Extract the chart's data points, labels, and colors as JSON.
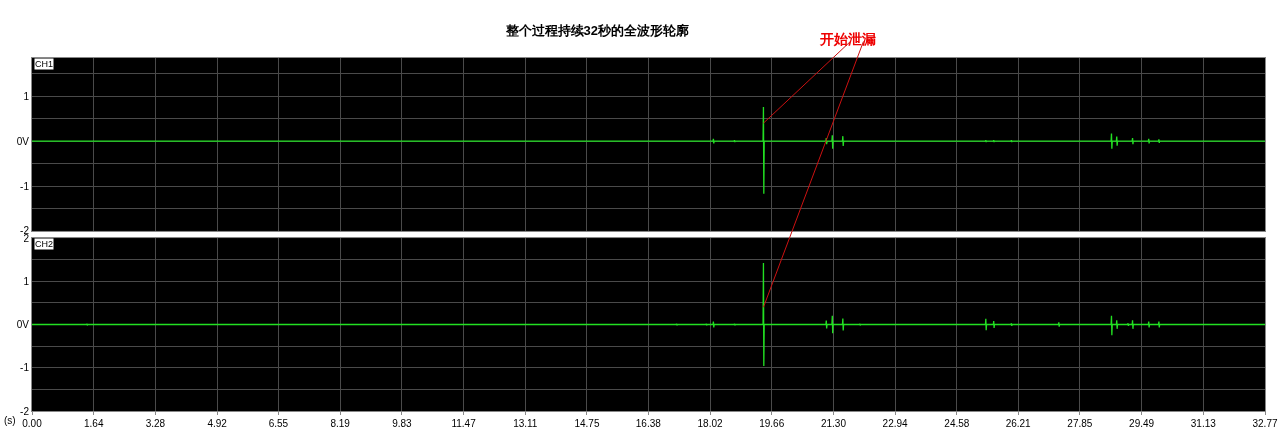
{
  "chart_data": [
    {
      "type": "line",
      "title": "整个过程持续32秒的全波形轮廓",
      "annotations": [
        "CH1",
        {
          "text": "开始泄漏",
          "x": 19.44,
          "y": 0.4
        }
      ],
      "xlim": [
        0,
        32.77
      ],
      "ylim": [
        -2,
        1.85
      ],
      "xticks": [
        1.64,
        3.28,
        4.92,
        6.55,
        8.19,
        9.83,
        11.47,
        13.11,
        14.75,
        16.38,
        18.02,
        19.66,
        21.3,
        22.94,
        24.58,
        26.21,
        27.85,
        29.49,
        31.13
      ],
      "yticks": [
        -2,
        {
          "value": -1.5,
          "label": null
        },
        -1,
        {
          "value": -0.5,
          "label": null
        },
        {
          "value": 0,
          "label": "0V"
        },
        {
          "value": 0.5,
          "label": null
        },
        1,
        {
          "value": 1.5,
          "label": null
        }
      ],
      "grid": true,
      "tick_labels": "y",
      "series": [
        {
          "color": "#22e022",
          "x": [
            0,
            18.1,
            18.11,
            18.12,
            18.13,
            18.66,
            18.67,
            18.68,
            18.69,
            19.43,
            19.44,
            19.45,
            19.46,
            21.1,
            21.11,
            21.12,
            21.13,
            21.26,
            21.27,
            21.28,
            21.29,
            21.54,
            21.55,
            21.56,
            21.57,
            25.34,
            25.35,
            25.36,
            25.37,
            25.55,
            25.56,
            25.57,
            25.58,
            26.02,
            26.03,
            26.04,
            26.05,
            28.68,
            28.69,
            28.7,
            28.71,
            28.82,
            28.83,
            28.84,
            28.85,
            29.24,
            29.25,
            29.26,
            29.27,
            29.67,
            29.68,
            29.69,
            29.7,
            29.94,
            29.95,
            29.96,
            29.97,
            32.77
          ],
          "values": [
            0,
            0,
            0.05,
            -0.05,
            0,
            0,
            0.02,
            -0.02,
            0,
            0,
            0.76,
            -1.17,
            0,
            0,
            0.07,
            -0.07,
            0,
            0,
            0.13,
            -0.17,
            0,
            0,
            0.11,
            -0.11,
            0,
            0,
            0.02,
            -0.02,
            0,
            0,
            0.02,
            -0.02,
            0,
            0,
            0.02,
            -0.02,
            0,
            0,
            0.17,
            -0.17,
            0,
            0,
            0.1,
            -0.1,
            0,
            0,
            0.07,
            -0.07,
            0,
            0,
            0.05,
            -0.05,
            0,
            0,
            0.04,
            -0.04,
            0,
            0
          ]
        }
      ]
    },
    {
      "type": "line",
      "xlabel": "(s)",
      "annotations": [
        "CH2"
      ],
      "xlim": [
        0,
        32.77
      ],
      "ylim": [
        -2,
        2
      ],
      "xticks": [
        {
          "value": 0,
          "label": "0.00"
        },
        1.64,
        3.28,
        4.92,
        6.55,
        8.19,
        9.83,
        11.47,
        13.11,
        14.75,
        16.38,
        18.02,
        19.66,
        {
          "value": 21.3,
          "label": "21.30"
        },
        22.94,
        24.58,
        26.21,
        27.85,
        29.49,
        31.13,
        32.77
      ],
      "yticks": [
        -2,
        {
          "value": -1.5,
          "label": null
        },
        -1,
        {
          "value": -0.5,
          "label": null
        },
        {
          "value": 0,
          "label": "0V"
        },
        {
          "value": 0.5,
          "label": null
        },
        1,
        {
          "value": 1.5,
          "label": null
        },
        2
      ],
      "grid": true,
      "series": [
        {
          "color": "#22e022",
          "x": [
            0,
            1.45,
            1.46,
            1.47,
            1.48,
            17.12,
            17.13,
            17.14,
            17.15,
            17.91,
            17.92,
            17.93,
            17.94,
            18.1,
            18.11,
            18.12,
            18.13,
            18.66,
            18.67,
            18.68,
            18.69,
            19.43,
            19.44,
            19.45,
            19.46,
            21.1,
            21.11,
            21.12,
            21.13,
            21.26,
            21.27,
            21.28,
            21.29,
            21.54,
            21.55,
            21.56,
            21.57,
            21.99,
            22,
            22.01,
            22.02,
            25.34,
            25.35,
            25.36,
            25.37,
            25.55,
            25.56,
            25.57,
            25.58,
            26.02,
            26.03,
            26.04,
            26.05,
            27.28,
            27.29,
            27.3,
            27.31,
            28.68,
            28.69,
            28.7,
            28.71,
            28.82,
            28.83,
            28.84,
            28.85,
            29.12,
            29.13,
            29.14,
            29.15,
            29.24,
            29.25,
            29.26,
            29.27,
            29.67,
            29.68,
            29.69,
            29.7,
            29.94,
            29.95,
            29.96,
            29.97,
            32.77
          ],
          "values": [
            0,
            0,
            0.02,
            -0.02,
            0,
            0,
            0.02,
            -0.02,
            0,
            0,
            0.02,
            -0.02,
            0,
            0,
            0.07,
            -0.07,
            0,
            0,
            0.02,
            -0.02,
            0,
            0,
            1.42,
            -0.96,
            0,
            0,
            0.09,
            -0.09,
            0,
            0,
            0.2,
            -0.2,
            0,
            0,
            0.14,
            -0.14,
            0,
            0,
            0.02,
            -0.02,
            0,
            0,
            0.13,
            -0.13,
            0,
            0,
            0.08,
            -0.08,
            0,
            0,
            0.03,
            -0.03,
            0,
            0,
            0.05,
            -0.05,
            0,
            0,
            0.2,
            -0.25,
            0,
            0,
            0.1,
            -0.1,
            0,
            0,
            0.03,
            -0.03,
            0,
            0,
            0.1,
            -0.1,
            0,
            0,
            0.07,
            -0.07,
            0,
            0,
            0.07,
            -0.07,
            0,
            0
          ]
        }
      ]
    }
  ]
}
